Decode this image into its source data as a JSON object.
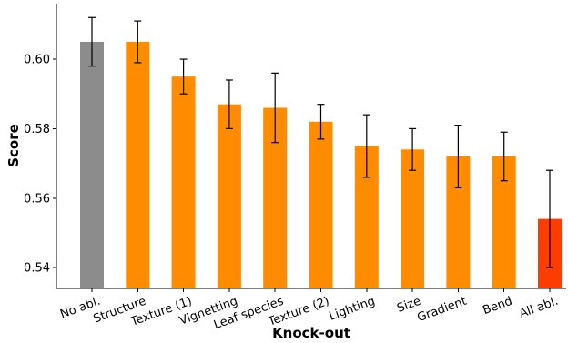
{
  "chart_data": {
    "type": "bar",
    "xlabel": "Knock-out",
    "ylabel": "Score",
    "ylim": [
      0.534,
      0.616
    ],
    "yticks": [
      0.54,
      0.56,
      0.58,
      0.6
    ],
    "ytick_labels": [
      "0.54",
      "0.56",
      "0.58",
      "0.60"
    ],
    "grid": false,
    "categories": [
      "No abl.",
      "Structure",
      "Texture (1)",
      "Vignetting",
      "Leaf species",
      "Texture (2)",
      "Lighting",
      "Size",
      "Gradient",
      "Bend",
      "All abl."
    ],
    "values": [
      0.605,
      0.605,
      0.595,
      0.587,
      0.586,
      0.582,
      0.575,
      0.574,
      0.572,
      0.572,
      0.554
    ],
    "error_low": [
      0.598,
      0.599,
      0.59,
      0.58,
      0.576,
      0.577,
      0.566,
      0.568,
      0.563,
      0.565,
      0.54
    ],
    "error_high": [
      0.612,
      0.611,
      0.6,
      0.594,
      0.596,
      0.587,
      0.584,
      0.58,
      0.581,
      0.579,
      0.568
    ],
    "colors": [
      "#8c8c8c",
      "#ff8c00",
      "#ff8c00",
      "#ff8c00",
      "#ff8c00",
      "#ff8c00",
      "#ff8c00",
      "#ff8c00",
      "#ff8c00",
      "#ff8c00",
      "#ff3d00"
    ]
  }
}
